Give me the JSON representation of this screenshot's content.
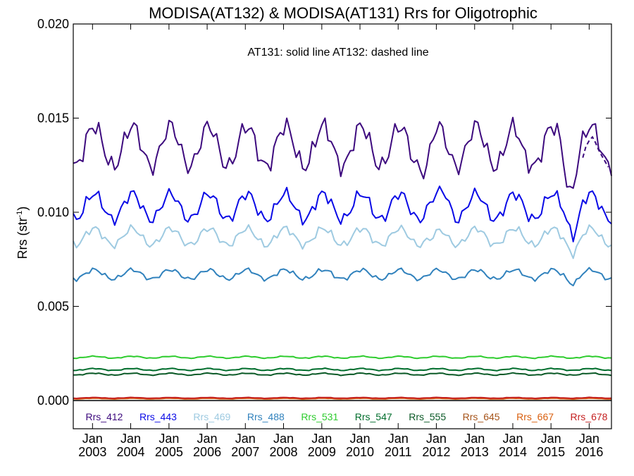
{
  "chart_data": {
    "type": "line",
    "title": "MODISA(AT132) & MODISA(AT131)  Rrs for Oligotrophic",
    "annotation": "AT131: solid line   AT132: dashed line",
    "ylabel": "Rrs (str",
    "ylabel_sup": "-1",
    "ylabel_close": ")",
    "ylim": [
      -0.0015,
      0.02
    ],
    "xlim": [
      "2002-07-01",
      "2016-08-01"
    ],
    "y_ticks": [
      0.0,
      0.005,
      0.01,
      0.015,
      0.02
    ],
    "y_tick_labels": [
      "0.000",
      "0.005",
      "0.010",
      "0.015",
      "0.020"
    ],
    "x_ticks": [
      "2003-01-01",
      "2004-01-01",
      "2005-01-01",
      "2006-01-01",
      "2007-01-01",
      "2008-01-01",
      "2009-01-01",
      "2010-01-01",
      "2011-01-01",
      "2012-01-01",
      "2013-01-01",
      "2014-01-01",
      "2015-01-01",
      "2016-01-01"
    ],
    "x_tick_month": "Jan",
    "x_tick_years": [
      "2003",
      "2004",
      "2005",
      "2006",
      "2007",
      "2008",
      "2009",
      "2010",
      "2011",
      "2012",
      "2013",
      "2014",
      "2015",
      "2016"
    ],
    "zero_line": 0.0,
    "legend_position": "bottom",
    "series": [
      {
        "name": "Rrs_412",
        "color": "#3d0a7e",
        "mean": 0.0135,
        "amp": 0.0011,
        "anomalies": [
          [
            "2011-10-01",
            -0.0008
          ],
          [
            "2015-07-01",
            -0.0016
          ],
          [
            "2014-04-01",
            -0.0004
          ]
        ]
      },
      {
        "name": "Rrs_443",
        "color": "#0a0ae6",
        "mean": 0.0103,
        "amp": 0.0007,
        "anomalies": [
          [
            "2015-08-01",
            -0.0009
          ],
          [
            "2012-04-01",
            0.0005
          ]
        ]
      },
      {
        "name": "Rrs_469",
        "color": "#9ecae1",
        "mean": 0.0087,
        "amp": 0.00045,
        "anomalies": [
          [
            "2015-08-01",
            -0.0005
          ],
          [
            "2011-12-01",
            -0.0003
          ]
        ]
      },
      {
        "name": "Rrs_488",
        "color": "#3182bd",
        "mean": 0.0067,
        "amp": 0.00025,
        "anomalies": [
          [
            "2015-08-01",
            -0.0003
          ]
        ]
      },
      {
        "name": "Rrs_531",
        "color": "#2ecc2e",
        "mean": 0.0023,
        "amp": 5e-05,
        "anomalies": []
      },
      {
        "name": "Rrs_547",
        "color": "#006d2c",
        "mean": 0.00165,
        "amp": 5e-05,
        "anomalies": []
      },
      {
        "name": "Rrs_555",
        "color": "#0b5a27",
        "mean": 0.0014,
        "amp": 5e-05,
        "anomalies": []
      },
      {
        "name": "Rrs_645",
        "color": "#a6541a",
        "mean": 0.00012,
        "amp": 2e-05,
        "anomalies": []
      },
      {
        "name": "Rrs_667",
        "color": "#d95f0e",
        "mean": 0.0001,
        "amp": 2e-05,
        "anomalies": []
      },
      {
        "name": "Rrs_678",
        "color": "#c41f1f",
        "mean": 0.00014,
        "amp": 2e-05,
        "anomalies": []
      }
    ],
    "dashed_segment": {
      "series": "Rrs_412",
      "from": "2015-11-01",
      "to": "2016-08-01",
      "values": [
        0.0129,
        0.0135,
        0.0138,
        0.014,
        0.0137,
        0.0133,
        0.013,
        0.0127,
        0.0124
      ]
    }
  }
}
